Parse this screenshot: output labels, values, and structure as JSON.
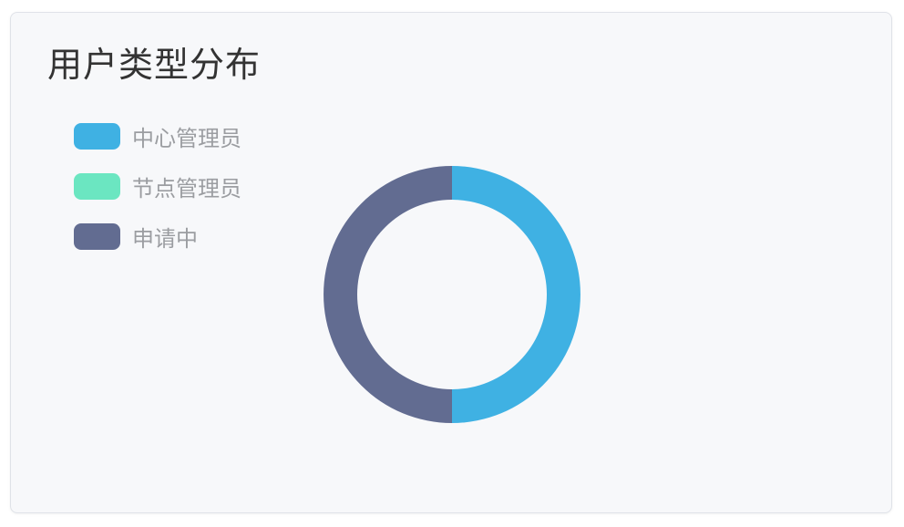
{
  "card": {
    "background": "#f7f8fa",
    "border_color": "#dfe2e8"
  },
  "chart_data": {
    "type": "pie",
    "subtype": "donut",
    "title": "用户类型分布",
    "categories": [
      "中心管理员",
      "节点管理员",
      "申请中"
    ],
    "values": [
      50,
      0,
      50
    ],
    "colors": [
      "#3fb1e3",
      "#6be6c1",
      "#626c91"
    ],
    "legend_position": "top-left",
    "legend_text_color": "#9b9da1",
    "title_color": "#333333",
    "start_angle_deg": -90,
    "clockwise": true,
    "inner_radius_ratio": 0.74,
    "data_labels_shown": false
  }
}
